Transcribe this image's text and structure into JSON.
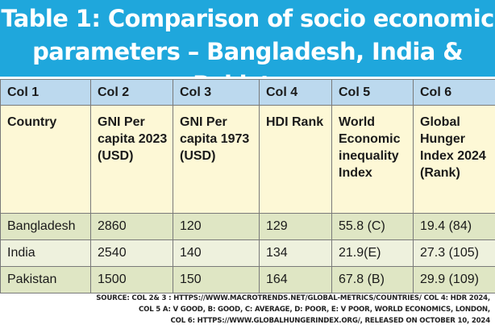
{
  "title": {
    "line1": "Table 1: Comparison of socio economic",
    "line2": "parameters – Bangladesh, India & Pakistan"
  },
  "chart_data": {
    "type": "table",
    "columns": [
      "Col 1",
      "Col 2",
      "Col 3",
      "Col 4",
      "Col 5",
      "Col 6"
    ],
    "labels": [
      "Country",
      "GNI Per capita 2023 (USD)",
      "GNI Per capita 1973 (USD)",
      "HDI Rank",
      "World Economic inequality Index",
      "Global Hunger Index 2024 (Rank)"
    ],
    "rows": [
      [
        "Bangladesh",
        "2860",
        "120",
        "129",
        "55.8 (C)",
        "19.4 (84)"
      ],
      [
        "India",
        "2540",
        "140",
        "134",
        "21.9(E)",
        "27.3 (105)"
      ],
      [
        "Pakistan",
        "1500",
        "150",
        "164",
        "67.8 (B)",
        "29.9 (109)"
      ]
    ]
  },
  "source": {
    "line1": "SOURCE: COL 2& 3 : HTTPS://WWW.MACROTRENDS.NET/GLOBAL-METRICS/COUNTRIES/  COL 4: HDR 2024,",
    "line2": "COL 5 A: V GOOD, B: GOOD, C: AVERAGE, D: POOR, E: V POOR, WORLD ECONOMICS, LONDON,",
    "line3": "COL 6:  HTTPS://WWW.GLOBALHUNGERINDEX.ORG/, RELEASED ON OCTOBER 10, 2024"
  },
  "colors": {
    "title_bg": "#1fa7dc",
    "header_bg": "#bcd9ee",
    "label_bg": "#fdf8d6",
    "data_bg": "#dfe6c4",
    "data_bg_light": "#eef1dd"
  }
}
